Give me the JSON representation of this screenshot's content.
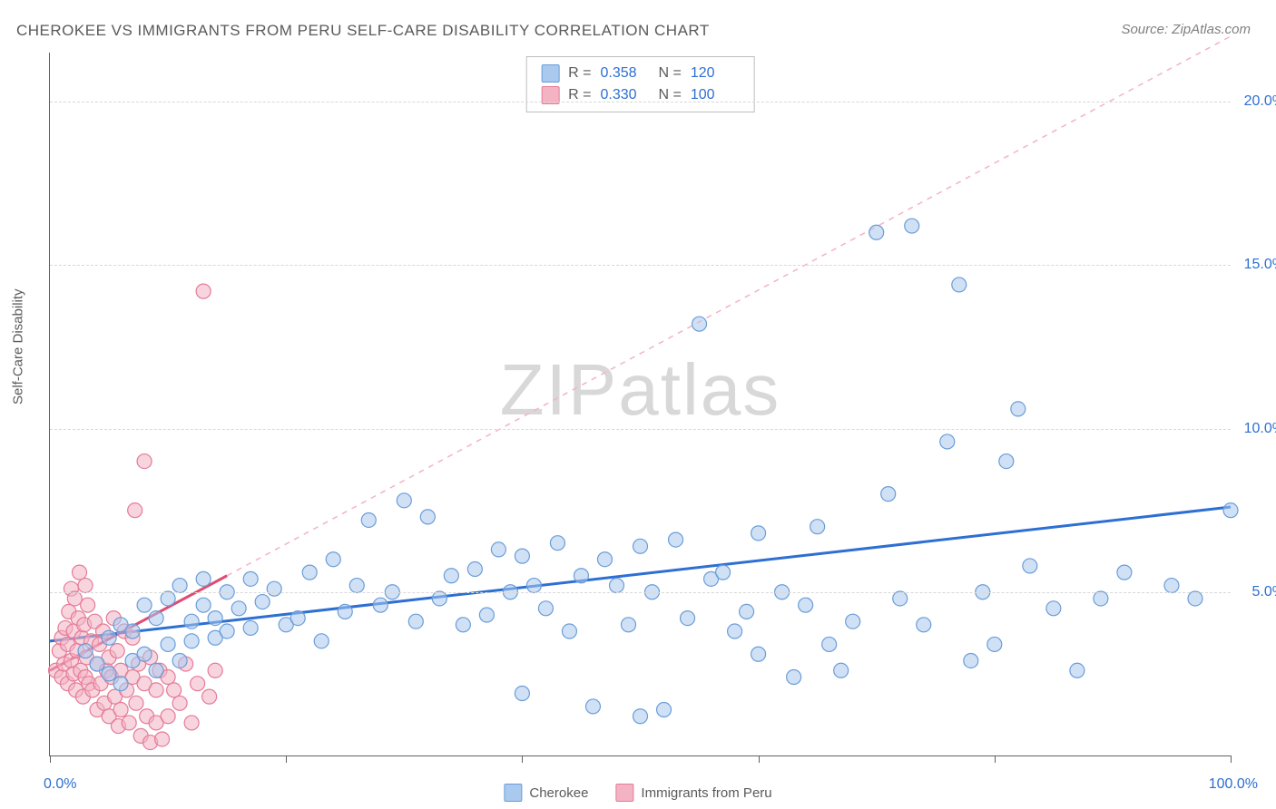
{
  "title": "CHEROKEE VS IMMIGRANTS FROM PERU SELF-CARE DISABILITY CORRELATION CHART",
  "source": "Source: ZipAtlas.com",
  "ylabel": "Self-Care Disability",
  "watermark_a": "ZIP",
  "watermark_b": "atlas",
  "chart": {
    "type": "scatter",
    "xlim": [
      0,
      100
    ],
    "ylim": [
      0,
      21.5
    ],
    "x_ticks": [
      0,
      20,
      40,
      60,
      80,
      100
    ],
    "y_gridlines": [
      5,
      10,
      15,
      20
    ],
    "y_tick_labels": [
      "5.0%",
      "10.0%",
      "15.0%",
      "20.0%"
    ],
    "x_min_label": "0.0%",
    "x_max_label": "100.0%",
    "background_color": "#ffffff",
    "grid_color": "#d8d8d8",
    "axis_color": "#606060",
    "marker_radius": 8,
    "marker_opacity": 0.55,
    "series": [
      {
        "name": "Cherokee",
        "color_fill": "#a9c9ee",
        "color_stroke": "#6a9dd8",
        "R": "0.358",
        "N": "120",
        "trend": {
          "x1": 0,
          "y1": 3.5,
          "x2": 100,
          "y2": 7.6,
          "color": "#2d6fd2",
          "width": 3,
          "dash": "none"
        },
        "points": [
          [
            3,
            3.2
          ],
          [
            4,
            2.8
          ],
          [
            5,
            2.5
          ],
          [
            5,
            3.6
          ],
          [
            6,
            4.0
          ],
          [
            6,
            2.2
          ],
          [
            7,
            2.9
          ],
          [
            7,
            3.8
          ],
          [
            8,
            4.6
          ],
          [
            8,
            3.1
          ],
          [
            9,
            4.2
          ],
          [
            9,
            2.6
          ],
          [
            10,
            4.8
          ],
          [
            10,
            3.4
          ],
          [
            11,
            5.2
          ],
          [
            11,
            2.9
          ],
          [
            12,
            4.1
          ],
          [
            12,
            3.5
          ],
          [
            13,
            4.6
          ],
          [
            13,
            5.4
          ],
          [
            14,
            3.6
          ],
          [
            14,
            4.2
          ],
          [
            15,
            5.0
          ],
          [
            15,
            3.8
          ],
          [
            16,
            4.5
          ],
          [
            17,
            5.4
          ],
          [
            17,
            3.9
          ],
          [
            18,
            4.7
          ],
          [
            19,
            5.1
          ],
          [
            20,
            4.0
          ],
          [
            21,
            4.2
          ],
          [
            22,
            5.6
          ],
          [
            23,
            3.5
          ],
          [
            24,
            6.0
          ],
          [
            25,
            4.4
          ],
          [
            26,
            5.2
          ],
          [
            27,
            7.2
          ],
          [
            28,
            4.6
          ],
          [
            29,
            5.0
          ],
          [
            30,
            7.8
          ],
          [
            31,
            4.1
          ],
          [
            32,
            7.3
          ],
          [
            33,
            4.8
          ],
          [
            34,
            5.5
          ],
          [
            35,
            4.0
          ],
          [
            36,
            5.7
          ],
          [
            37,
            4.3
          ],
          [
            38,
            6.3
          ],
          [
            39,
            5.0
          ],
          [
            40,
            6.1
          ],
          [
            40,
            1.9
          ],
          [
            41,
            5.2
          ],
          [
            42,
            4.5
          ],
          [
            43,
            6.5
          ],
          [
            44,
            3.8
          ],
          [
            45,
            5.5
          ],
          [
            46,
            1.5
          ],
          [
            47,
            6.0
          ],
          [
            48,
            5.2
          ],
          [
            49,
            4.0
          ],
          [
            50,
            6.4
          ],
          [
            50,
            1.2
          ],
          [
            51,
            5.0
          ],
          [
            52,
            1.4
          ],
          [
            53,
            6.6
          ],
          [
            54,
            4.2
          ],
          [
            55,
            13.2
          ],
          [
            56,
            5.4
          ],
          [
            57,
            5.6
          ],
          [
            58,
            3.8
          ],
          [
            59,
            4.4
          ],
          [
            60,
            3.1
          ],
          [
            60,
            6.8
          ],
          [
            62,
            5.0
          ],
          [
            63,
            2.4
          ],
          [
            64,
            4.6
          ],
          [
            65,
            7.0
          ],
          [
            66,
            3.4
          ],
          [
            67,
            2.6
          ],
          [
            68,
            4.1
          ],
          [
            70,
            16.0
          ],
          [
            71,
            8.0
          ],
          [
            72,
            4.8
          ],
          [
            73,
            16.2
          ],
          [
            74,
            4.0
          ],
          [
            76,
            9.6
          ],
          [
            77,
            14.4
          ],
          [
            78,
            2.9
          ],
          [
            79,
            5.0
          ],
          [
            80,
            3.4
          ],
          [
            81,
            9.0
          ],
          [
            82,
            10.6
          ],
          [
            83,
            5.8
          ],
          [
            85,
            4.5
          ],
          [
            87,
            2.6
          ],
          [
            89,
            4.8
          ],
          [
            91,
            5.6
          ],
          [
            95,
            5.2
          ],
          [
            97,
            4.8
          ],
          [
            100,
            7.5
          ]
        ]
      },
      {
        "name": "Immigrants from Peru",
        "color_fill": "#f3b3c2",
        "color_stroke": "#e57b97",
        "R": "0.330",
        "N": "100",
        "trend": {
          "x1": 0,
          "y1": 2.6,
          "x2": 15,
          "y2": 5.5,
          "color": "#e04b72",
          "width": 3,
          "dash": "none"
        },
        "trend_ext": {
          "x1": 15,
          "y1": 5.5,
          "x2": 100,
          "y2": 22.0,
          "color": "#f3b3c2",
          "width": 1.5,
          "dash": "6,6"
        },
        "points": [
          [
            0.5,
            2.6
          ],
          [
            0.8,
            3.2
          ],
          [
            1.0,
            2.4
          ],
          [
            1.0,
            3.6
          ],
          [
            1.2,
            2.8
          ],
          [
            1.3,
            3.9
          ],
          [
            1.5,
            2.2
          ],
          [
            1.5,
            3.4
          ],
          [
            1.6,
            4.4
          ],
          [
            1.8,
            2.9
          ],
          [
            1.8,
            5.1
          ],
          [
            2.0,
            2.5
          ],
          [
            2.0,
            3.8
          ],
          [
            2.1,
            4.8
          ],
          [
            2.2,
            2.0
          ],
          [
            2.3,
            3.2
          ],
          [
            2.4,
            4.2
          ],
          [
            2.5,
            5.6
          ],
          [
            2.6,
            2.6
          ],
          [
            2.7,
            3.6
          ],
          [
            2.8,
            1.8
          ],
          [
            2.9,
            4.0
          ],
          [
            3.0,
            2.4
          ],
          [
            3.0,
            5.2
          ],
          [
            3.1,
            3.0
          ],
          [
            3.2,
            4.6
          ],
          [
            3.3,
            2.2
          ],
          [
            3.5,
            3.5
          ],
          [
            3.6,
            2.0
          ],
          [
            3.8,
            4.1
          ],
          [
            4.0,
            2.8
          ],
          [
            4.0,
            1.4
          ],
          [
            4.2,
            3.4
          ],
          [
            4.3,
            2.2
          ],
          [
            4.5,
            3.8
          ],
          [
            4.6,
            1.6
          ],
          [
            4.8,
            2.6
          ],
          [
            5.0,
            3.0
          ],
          [
            5.0,
            1.2
          ],
          [
            5.2,
            2.4
          ],
          [
            5.4,
            4.2
          ],
          [
            5.5,
            1.8
          ],
          [
            5.7,
            3.2
          ],
          [
            5.8,
            0.9
          ],
          [
            6.0,
            2.6
          ],
          [
            6.0,
            1.4
          ],
          [
            6.3,
            3.8
          ],
          [
            6.5,
            2.0
          ],
          [
            6.7,
            1.0
          ],
          [
            7.0,
            2.4
          ],
          [
            7.0,
            3.6
          ],
          [
            7.2,
            7.5
          ],
          [
            7.3,
            1.6
          ],
          [
            7.5,
            2.8
          ],
          [
            7.7,
            0.6
          ],
          [
            8.0,
            2.2
          ],
          [
            8.0,
            9.0
          ],
          [
            8.2,
            1.2
          ],
          [
            8.5,
            3.0
          ],
          [
            8.5,
            0.4
          ],
          [
            9.0,
            2.0
          ],
          [
            9.0,
            1.0
          ],
          [
            9.3,
            2.6
          ],
          [
            9.5,
            0.5
          ],
          [
            10.0,
            2.4
          ],
          [
            10.0,
            1.2
          ],
          [
            10.5,
            2.0
          ],
          [
            11.0,
            1.6
          ],
          [
            11.5,
            2.8
          ],
          [
            12.0,
            1.0
          ],
          [
            12.5,
            2.2
          ],
          [
            13.0,
            14.2
          ],
          [
            13.5,
            1.8
          ],
          [
            14.0,
            2.6
          ]
        ]
      }
    ]
  },
  "stats_box": {
    "label_R": "R  =",
    "label_N": "N  ="
  },
  "legend": {
    "items": [
      "Cherokee",
      "Immigrants from Peru"
    ]
  },
  "colors": {
    "title_text": "#5a5a5a",
    "source_text": "#808080",
    "value_text": "#2d6fd2"
  }
}
